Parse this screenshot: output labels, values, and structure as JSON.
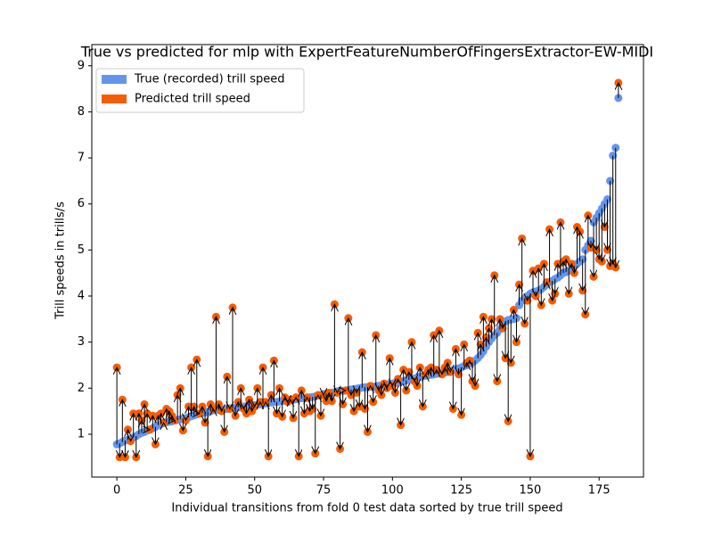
{
  "chart_data": {
    "type": "scatter",
    "title": "True vs predicted for mlp with ExpertFeatureNumberOfFingersExtractor-EW-MIDI",
    "xlabel": "Individual transitions from fold 0 test data sorted by true trill speed",
    "ylabel": "Trill speeds in trills/s",
    "legend": "upper left",
    "arrows": true,
    "xlim": [
      -9.1,
      191.1
    ],
    "ylim": [
      0.07,
      9.46
    ],
    "xticks": [
      0,
      25,
      50,
      75,
      100,
      125,
      150,
      175
    ],
    "yticks": [
      1,
      2,
      3,
      4,
      5,
      6,
      7,
      8,
      9
    ],
    "x": [
      0,
      1,
      2,
      3,
      4,
      5,
      6,
      7,
      8,
      9,
      10,
      11,
      12,
      13,
      14,
      15,
      16,
      17,
      18,
      19,
      20,
      21,
      22,
      23,
      24,
      25,
      26,
      27,
      28,
      29,
      30,
      31,
      32,
      33,
      34,
      35,
      36,
      37,
      38,
      39,
      40,
      41,
      42,
      43,
      44,
      45,
      46,
      47,
      48,
      49,
      50,
      51,
      52,
      53,
      54,
      55,
      56,
      57,
      58,
      59,
      60,
      61,
      62,
      63,
      64,
      65,
      66,
      67,
      68,
      69,
      70,
      71,
      72,
      73,
      74,
      75,
      76,
      77,
      78,
      79,
      80,
      81,
      82,
      83,
      84,
      85,
      86,
      87,
      88,
      89,
      90,
      91,
      92,
      93,
      94,
      95,
      96,
      97,
      98,
      99,
      100,
      101,
      102,
      103,
      104,
      105,
      106,
      107,
      108,
      109,
      110,
      111,
      112,
      113,
      114,
      115,
      116,
      117,
      118,
      119,
      120,
      121,
      122,
      123,
      124,
      125,
      126,
      127,
      128,
      129,
      130,
      131,
      132,
      133,
      134,
      135,
      136,
      137,
      138,
      139,
      140,
      141,
      142,
      143,
      144,
      145,
      146,
      147,
      148,
      149,
      150,
      151,
      152,
      153,
      154,
      155,
      156,
      157,
      158,
      159,
      160,
      161,
      162,
      163,
      164,
      165,
      166,
      167,
      168,
      169,
      170,
      171,
      172,
      173,
      174,
      175,
      176,
      177,
      178,
      179,
      180,
      181,
      182
    ],
    "series": [
      {
        "name": "True (recorded) trill speed",
        "color": "#6495ed",
        "values": [
          0.78,
          0.8,
          0.83,
          0.86,
          0.88,
          0.9,
          0.93,
          0.96,
          1.0,
          1.03,
          1.05,
          1.08,
          1.1,
          1.13,
          1.16,
          1.2,
          1.22,
          1.24,
          1.26,
          1.27,
          1.28,
          1.3,
          1.31,
          1.32,
          1.34,
          1.35,
          1.37,
          1.39,
          1.41,
          1.43,
          1.45,
          1.46,
          1.47,
          1.49,
          1.5,
          1.52,
          1.53,
          1.53,
          1.54,
          1.54,
          1.55,
          1.56,
          1.57,
          1.57,
          1.58,
          1.6,
          1.6,
          1.61,
          1.62,
          1.62,
          1.63,
          1.64,
          1.65,
          1.66,
          1.67,
          1.68,
          1.69,
          1.7,
          1.7,
          1.71,
          1.72,
          1.73,
          1.73,
          1.74,
          1.75,
          1.76,
          1.77,
          1.78,
          1.78,
          1.79,
          1.8,
          1.81,
          1.82,
          1.84,
          1.85,
          1.87,
          1.88,
          1.89,
          1.9,
          1.91,
          1.93,
          1.94,
          1.94,
          1.95,
          1.96,
          1.97,
          1.98,
          1.99,
          2.0,
          2.01,
          2.02,
          2.02,
          2.03,
          2.03,
          2.04,
          2.05,
          2.06,
          2.07,
          2.08,
          2.09,
          2.1,
          2.11,
          2.12,
          2.14,
          2.15,
          2.17,
          2.18,
          2.2,
          2.21,
          2.23,
          2.25,
          2.26,
          2.27,
          2.28,
          2.29,
          2.3,
          2.31,
          2.32,
          2.33,
          2.34,
          2.35,
          2.37,
          2.39,
          2.41,
          2.43,
          2.45,
          2.48,
          2.5,
          2.53,
          2.56,
          2.6,
          2.65,
          2.72,
          2.8,
          2.9,
          3.0,
          3.08,
          3.15,
          3.2,
          3.28,
          3.4,
          3.45,
          3.48,
          3.49,
          3.5,
          3.52,
          3.8,
          3.9,
          3.95,
          4.0,
          4.05,
          4.08,
          4.1,
          4.12,
          4.15,
          4.2,
          4.25,
          4.3,
          4.33,
          4.37,
          4.4,
          4.45,
          4.5,
          4.52,
          4.55,
          4.6,
          4.65,
          4.7,
          4.75,
          4.8,
          5.0,
          5.1,
          5.2,
          5.6,
          5.7,
          5.8,
          5.9,
          6.0,
          6.1,
          6.5,
          7.05,
          7.22,
          8.3
        ]
      },
      {
        "name": "Predicted trill speed",
        "color": "#f55d00",
        "values": [
          2.45,
          0.5,
          1.75,
          0.5,
          1.1,
          0.85,
          1.45,
          0.5,
          1.45,
          1.3,
          1.65,
          1.45,
          1.1,
          1.4,
          0.78,
          1.4,
          1.45,
          1.25,
          1.55,
          1.5,
          1.4,
          1.3,
          1.85,
          2.0,
          1.08,
          1.3,
          1.6,
          2.45,
          1.6,
          2.62,
          1.45,
          1.6,
          1.25,
          0.52,
          1.65,
          1.55,
          3.55,
          1.65,
          1.5,
          1.05,
          2.25,
          1.55,
          3.75,
          1.4,
          1.7,
          2.0,
          1.55,
          1.45,
          1.75,
          1.5,
          1.6,
          2.0,
          1.7,
          2.45,
          1.7,
          0.52,
          1.85,
          2.6,
          1.45,
          2.0,
          1.38,
          1.8,
          1.7,
          1.75,
          1.35,
          1.8,
          0.52,
          1.95,
          1.45,
          1.8,
          1.5,
          1.55,
          0.58,
          1.85,
          1.4,
          1.85,
          1.72,
          1.9,
          1.72,
          3.82,
          1.9,
          0.68,
          1.65,
          1.95,
          3.52,
          1.85,
          1.5,
          1.9,
          1.6,
          2.78,
          1.55,
          1.05,
          2.05,
          1.7,
          3.15,
          1.95,
          1.85,
          2.1,
          2.0,
          2.65,
          2.05,
          1.9,
          2.2,
          1.2,
          2.4,
          1.95,
          2.35,
          3.0,
          2.15,
          2.05,
          2.45,
          1.6,
          2.3,
          2.4,
          2.45,
          3.15,
          2.4,
          3.25,
          2.3,
          2.45,
          2.55,
          2.35,
          1.55,
          2.85,
          2.3,
          1.42,
          2.95,
          2.55,
          2.6,
          2.15,
          2.05,
          3.2,
          2.95,
          3.55,
          3.1,
          3.3,
          3.5,
          4.45,
          2.15,
          3.5,
          3.3,
          2.65,
          1.28,
          2.55,
          3.7,
          3.0,
          4.25,
          5.25,
          3.4,
          3.9,
          0.52,
          4.55,
          4.0,
          4.6,
          3.8,
          4.7,
          4.3,
          5.45,
          3.9,
          4.05,
          4.7,
          5.6,
          4.75,
          4.8,
          4.05,
          4.7,
          4.5,
          5.5,
          5.4,
          4.12,
          3.6,
          5.75,
          5.05,
          4.42,
          5.0,
          4.8,
          4.75,
          5.5,
          5.0,
          4.65,
          4.7,
          4.62,
          8.63
        ]
      }
    ]
  }
}
